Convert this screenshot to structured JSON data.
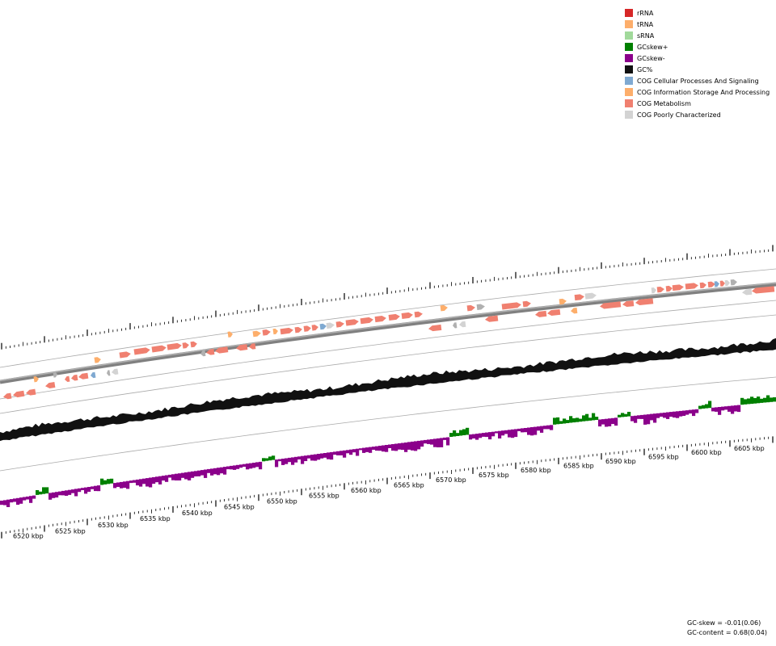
{
  "legend": [
    {
      "label": "rRNA",
      "color": "#d62728",
      "icon": "rrna-swatch"
    },
    {
      "label": "tRNA",
      "color": "#fdae6b",
      "icon": "trna-swatch"
    },
    {
      "label": "sRNA",
      "color": "#a1d99b",
      "icon": "srna-swatch"
    },
    {
      "label": "GCskew+",
      "color": "#008000",
      "icon": "gcskew-plus-swatch"
    },
    {
      "label": "GCskew-",
      "color": "#8b008b",
      "icon": "gcskew-minus-swatch"
    },
    {
      "label": "GC%",
      "color": "#111111",
      "icon": "gc-content-swatch"
    },
    {
      "label": "COG Cellular Processes And Signaling",
      "color": "#7fa9d1",
      "icon": "cog-cellular-swatch"
    },
    {
      "label": "COG Information Storage And Processing",
      "color": "#fdae6b",
      "icon": "cog-information-swatch"
    },
    {
      "label": "COG Metabolism",
      "color": "#f08070",
      "icon": "cog-metabolism-swatch"
    },
    {
      "label": "COG Poorly Characterized",
      "color": "#d3d3d3",
      "icon": "cog-poorly-swatch"
    }
  ],
  "stats": {
    "gc_skew": "GC-skew = -0.01(0.06)",
    "gc_content": "GC-content = 0.68(0.04)"
  },
  "axis": {
    "labels": [
      "6520 kbp",
      "6525 kbp",
      "6530 kbp",
      "6535 kbp",
      "6540 kbp",
      "6545 kbp",
      "6550 kbp",
      "6555 kbp",
      "6560 kbp",
      "6565 kbp",
      "6570 kbp",
      "6575 kbp",
      "6580 kbp",
      "6585 kbp",
      "6590 kbp",
      "6595 kbp",
      "6600 kbp",
      "6605 kbp"
    ]
  },
  "colors": {
    "metabolism": "#f08070",
    "information": "#fdae6b",
    "cellular": "#7fa9d1",
    "poorly": "#d3d3d3",
    "poorly_dark": "#b0b0b0",
    "gc": "#111111",
    "skew_plus": "#008000",
    "skew_minus": "#8b008b"
  }
}
